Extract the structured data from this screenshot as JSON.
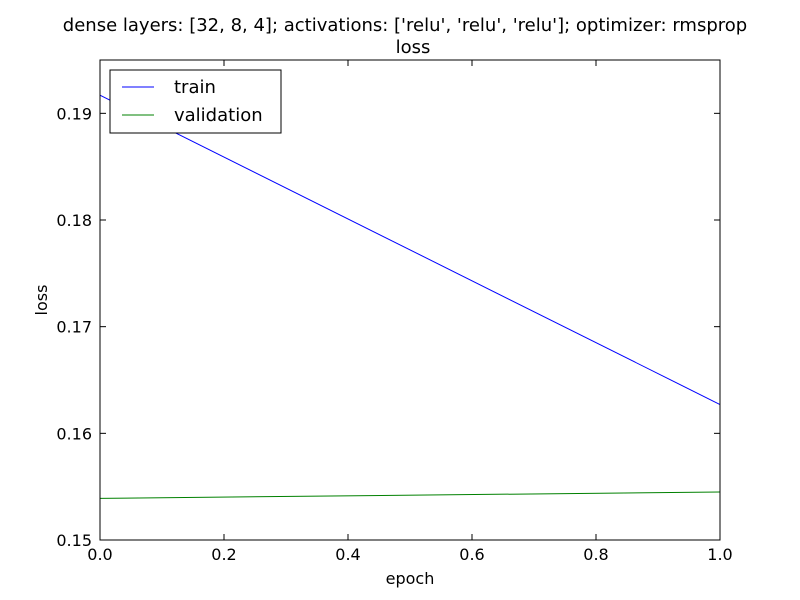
{
  "chart_data": {
    "type": "line",
    "title": "dense layers: [32, 8, 4]; activations: ['relu', 'relu', 'relu']; optimizer: rmsprop",
    "subtitle": "loss",
    "xlabel": "epoch",
    "ylabel": "loss",
    "xlim": [
      0.0,
      1.0
    ],
    "ylim": [
      0.15,
      0.195
    ],
    "xticks": [
      0.0,
      0.2,
      0.4,
      0.6,
      0.8,
      1.0
    ],
    "xtick_labels": [
      "0.0",
      "0.2",
      "0.4",
      "0.6",
      "0.8",
      "1.0"
    ],
    "yticks": [
      0.15,
      0.16,
      0.17,
      0.18,
      0.19
    ],
    "ytick_labels": [
      "0.15",
      "0.16",
      "0.17",
      "0.18",
      "0.19"
    ],
    "grid": false,
    "legend_position": "top-left",
    "series": [
      {
        "name": "train",
        "color": "#0000ff",
        "x": [
          0.0,
          1.0
        ],
        "y": [
          0.1917,
          0.1627
        ]
      },
      {
        "name": "validation",
        "color": "#008000",
        "x": [
          0.0,
          1.0
        ],
        "y": [
          0.1539,
          0.1545
        ]
      }
    ]
  }
}
